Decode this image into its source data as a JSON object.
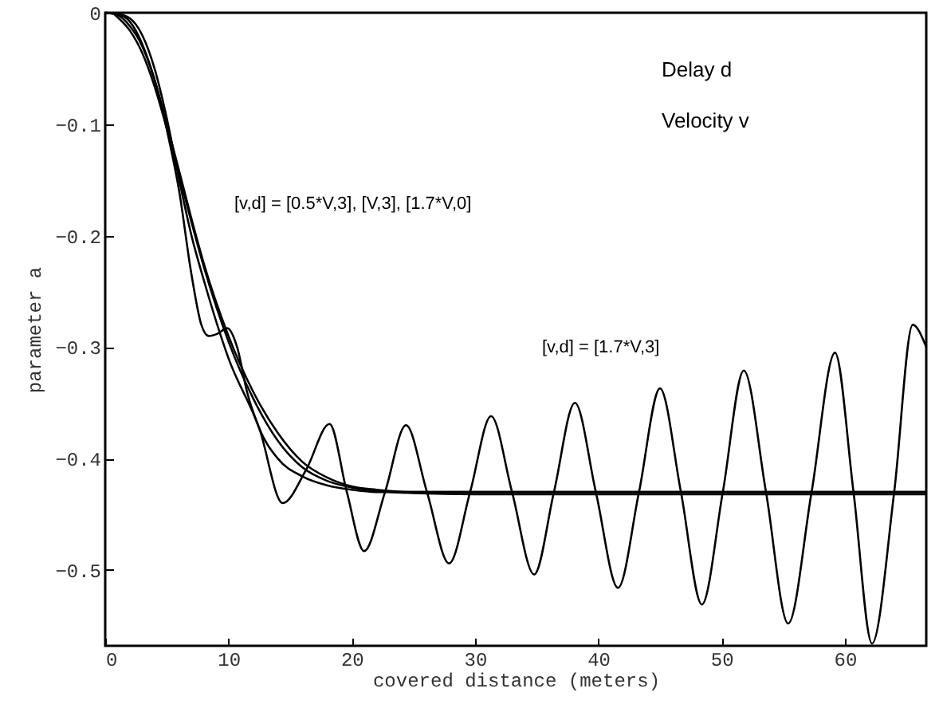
{
  "chart_data": {
    "type": "line",
    "xlabel": "covered distance (meters)",
    "ylabel": "parameter a",
    "xlim": [
      0,
      66.6
    ],
    "ylim": [
      -0.568,
      0
    ],
    "xticks": [
      0,
      10,
      20,
      30,
      40,
      50,
      60
    ],
    "yticks": [
      0,
      -0.1,
      -0.2,
      -0.3,
      -0.4,
      -0.5
    ],
    "grid": false,
    "annotations": [
      "Delay d",
      "Velocity v",
      "[v,d] = [0.5*V,3], [V,3], [1.7*V,0]",
      "[v,d] = [1.7*V,3]"
    ],
    "series": [
      {
        "color": "#000000",
        "x": [
          0,
          1,
          2,
          3,
          4,
          5,
          6,
          7,
          8,
          10,
          12,
          14,
          16,
          18,
          20,
          22,
          25,
          30,
          40,
          50,
          60,
          66.6
        ],
        "values": [
          0,
          -0.002,
          -0.012,
          -0.03,
          -0.06,
          -0.1,
          -0.142,
          -0.185,
          -0.225,
          -0.29,
          -0.34,
          -0.377,
          -0.403,
          -0.417,
          -0.425,
          -0.428,
          -0.43,
          -0.43,
          -0.43,
          -0.43,
          -0.43,
          -0.43
        ]
      },
      {
        "color": "#000000",
        "x": [
          0.6,
          1,
          2,
          3,
          4,
          5,
          6,
          7,
          8,
          10,
          12,
          14,
          16,
          18,
          20,
          22,
          25,
          30,
          40,
          50,
          60,
          66.6
        ],
        "values": [
          0,
          -0.004,
          -0.016,
          -0.036,
          -0.066,
          -0.104,
          -0.146,
          -0.188,
          -0.228,
          -0.295,
          -0.346,
          -0.384,
          -0.408,
          -0.42,
          -0.426,
          -0.429,
          -0.431,
          -0.432,
          -0.432,
          -0.432,
          -0.432,
          -0.432
        ]
      },
      {
        "color": "#000000",
        "x": [
          0,
          1,
          2,
          3,
          4,
          5,
          6,
          7,
          7.8,
          8.4,
          9.1,
          9.9,
          10.7,
          11.5,
          12.5,
          14,
          16,
          18,
          20,
          22,
          25,
          30,
          40,
          50,
          60,
          66.6
        ],
        "values": [
          0,
          -0.001,
          -0.008,
          -0.028,
          -0.06,
          -0.105,
          -0.16,
          -0.235,
          -0.28,
          -0.29,
          -0.288,
          -0.283,
          -0.3,
          -0.34,
          -0.373,
          -0.4,
          -0.416,
          -0.424,
          -0.428,
          -0.43,
          -0.43,
          -0.43,
          -0.43,
          -0.43,
          -0.43,
          -0.43
        ]
      },
      {
        "color": "#000000",
        "x": [
          0,
          1,
          2,
          3,
          4,
          5,
          6,
          7,
          8,
          10,
          12.5,
          14.4,
          16.3,
          18.2,
          19.6,
          21,
          22.7,
          24.4,
          26.1,
          27.9,
          29.6,
          31.3,
          33,
          34.8,
          36.4,
          38.1,
          39.8,
          41.6,
          43.3,
          45,
          46.7,
          48.4,
          50.1,
          51.8,
          53.6,
          55.4,
          57.3,
          59.2,
          60.7,
          62.2,
          64,
          65.5,
          66.6
        ],
        "values": [
          0,
          -0.001,
          -0.005,
          -0.02,
          -0.05,
          -0.095,
          -0.15,
          -0.2,
          -0.24,
          -0.31,
          -0.373,
          -0.44,
          -0.41,
          -0.369,
          -0.43,
          -0.483,
          -0.43,
          -0.37,
          -0.43,
          -0.494,
          -0.43,
          -0.362,
          -0.43,
          -0.504,
          -0.43,
          -0.35,
          -0.43,
          -0.516,
          -0.43,
          -0.337,
          -0.43,
          -0.531,
          -0.43,
          -0.321,
          -0.43,
          -0.548,
          -0.43,
          -0.305,
          -0.43,
          -0.566,
          -0.43,
          -0.28,
          -0.3
        ]
      }
    ]
  }
}
